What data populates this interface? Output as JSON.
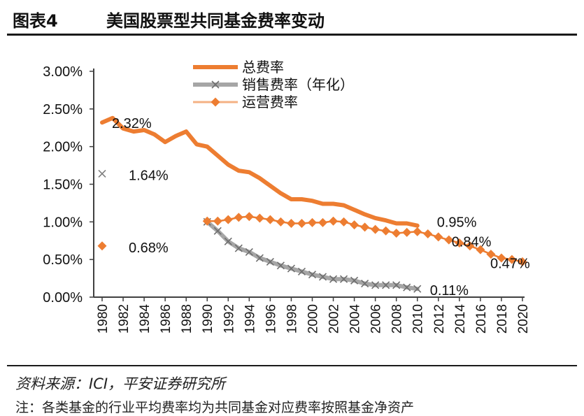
{
  "figure": {
    "number": "图表4",
    "title": "美国股票型共同基金费率变动",
    "source": "资料来源：ICI，平安证券研究所",
    "note": "注：各类基金的行业平均费率均为共同基金对应费率按照基金净资产"
  },
  "chart_data": {
    "type": "line",
    "title": "美国股票型共同基金费率变动",
    "xlabel": "",
    "ylabel": "",
    "ylim": [
      0,
      3
    ],
    "y_ticks": [
      "0.00%",
      "0.50%",
      "1.00%",
      "1.50%",
      "2.00%",
      "2.50%",
      "3.00%"
    ],
    "x_ticks": [
      "1980",
      "1982",
      "1984",
      "1986",
      "1988",
      "1990",
      "1992",
      "1994",
      "1996",
      "1998",
      "2000",
      "2002",
      "2004",
      "2006",
      "2008",
      "2010",
      "2012",
      "2014",
      "2016",
      "2018",
      "2020"
    ],
    "grid": false,
    "legend_position": "top-center",
    "series": [
      {
        "name": "总费率",
        "color": "#ED7D31",
        "marker": "none",
        "x": [
          1980,
          1981,
          1982,
          1983,
          1984,
          1985,
          1986,
          1987,
          1988,
          1989,
          1990,
          1991,
          1992,
          1993,
          1994,
          1995,
          1996,
          1997,
          1998,
          1999,
          2000,
          2001,
          2002,
          2003,
          2004,
          2005,
          2006,
          2007,
          2008,
          2009,
          2010
        ],
        "values": [
          2.32,
          2.38,
          2.24,
          2.2,
          2.22,
          2.16,
          2.06,
          2.14,
          2.2,
          2.03,
          2.0,
          1.88,
          1.76,
          1.68,
          1.66,
          1.58,
          1.48,
          1.38,
          1.3,
          1.3,
          1.28,
          1.24,
          1.24,
          1.22,
          1.16,
          1.1,
          1.05,
          1.02,
          0.98,
          0.98,
          0.95
        ]
      },
      {
        "name": "销售费率（年化）",
        "color": "#A6A6A6",
        "marker": "x",
        "x": [
          1980,
          1990,
          1991,
          1992,
          1993,
          1994,
          1995,
          1996,
          1997,
          1998,
          1999,
          2000,
          2001,
          2002,
          2003,
          2004,
          2005,
          2006,
          2007,
          2008,
          2009,
          2010
        ],
        "values": [
          1.64,
          1.0,
          0.88,
          0.74,
          0.65,
          0.6,
          0.52,
          0.47,
          0.42,
          0.38,
          0.34,
          0.3,
          0.27,
          0.24,
          0.24,
          0.22,
          0.18,
          0.16,
          0.16,
          0.16,
          0.13,
          0.11
        ]
      },
      {
        "name": "运营费率",
        "color": "#ED7D31",
        "marker": "diamond",
        "x": [
          1980,
          1990,
          1991,
          1992,
          1993,
          1994,
          1995,
          1996,
          1997,
          1998,
          1999,
          2000,
          2001,
          2002,
          2003,
          2004,
          2005,
          2006,
          2007,
          2008,
          2009,
          2010,
          2011,
          2012,
          2013,
          2014,
          2015,
          2016,
          2017,
          2018,
          2019,
          2020
        ],
        "values": [
          0.68,
          1.01,
          1.01,
          1.03,
          1.06,
          1.07,
          1.05,
          1.03,
          1.0,
          0.98,
          0.98,
          0.99,
          0.99,
          1.01,
          1.0,
          0.96,
          0.93,
          0.9,
          0.88,
          0.85,
          0.86,
          0.87,
          0.84,
          0.8,
          0.76,
          0.72,
          0.68,
          0.63,
          0.57,
          0.52,
          0.5,
          0.47
        ]
      }
    ],
    "data_labels": [
      {
        "text": "2.32%",
        "series": 0,
        "x": 1980,
        "value": 2.32
      },
      {
        "text": "1.64%",
        "series": 1,
        "x": 1980,
        "value": 1.64
      },
      {
        "text": "0.68%",
        "series": 2,
        "x": 1980,
        "value": 0.68
      },
      {
        "text": "0.95%",
        "series": 0,
        "x": 2010,
        "value": 0.95
      },
      {
        "text": "0.84%",
        "series": 2,
        "x": 2011,
        "value": 0.84
      },
      {
        "text": "0.11%",
        "series": 1,
        "x": 2010,
        "value": 0.11
      },
      {
        "text": "0.47%",
        "series": 2,
        "x": 2020,
        "value": 0.47
      }
    ]
  }
}
